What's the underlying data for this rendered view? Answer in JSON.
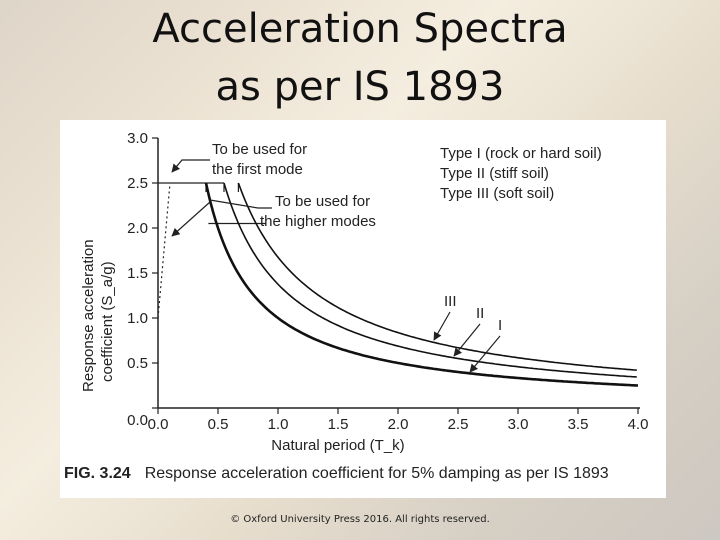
{
  "slide": {
    "title_line1": "Acceleration Spectra",
    "title_line2": "as per IS 1893",
    "copyright": "© Oxford University Press 2016. All rights reserved."
  },
  "figure": {
    "caption_number": "FIG. 3.24",
    "caption_text": "Response acceleration coefficient for 5% damping as per IS 1893"
  },
  "chart_data": {
    "type": "line",
    "xlabel": "Natural period (T_k)",
    "ylabel_line1": "Response acceleration",
    "ylabel_line2": "coefficient (S_a/g)",
    "xlim": [
      0,
      4.0
    ],
    "ylim": [
      0,
      3.0
    ],
    "x_ticks": [
      "0.0",
      "0.5",
      "1.0",
      "1.5",
      "2.0",
      "2.5",
      "3.0",
      "3.5",
      "4.0"
    ],
    "y_ticks": [
      "0.0",
      "0.5",
      "1.0",
      "1.5",
      "2.0",
      "2.5",
      "3.0"
    ],
    "grid": false,
    "legend_position": "top-right",
    "legend": [
      "Type I (rock or hard soil)",
      "Type II (stiff soil)",
      "Type III (soft soil)"
    ],
    "series": [
      {
        "name": "I",
        "plateau": 2.5,
        "x": [
          0.0,
          0.1,
          0.4,
          0.5,
          0.75,
          1.0,
          1.5,
          2.0,
          2.5,
          3.0,
          3.5,
          4.0
        ],
        "y": [
          1.0,
          2.5,
          2.5,
          2.0,
          1.33,
          1.0,
          0.67,
          0.5,
          0.4,
          0.33,
          0.29,
          0.25
        ]
      },
      {
        "name": "II",
        "plateau": 2.5,
        "x": [
          0.0,
          0.1,
          0.55,
          0.75,
          1.0,
          1.5,
          2.0,
          2.5,
          3.0,
          3.5,
          4.0
        ],
        "y": [
          1.0,
          2.5,
          2.5,
          1.81,
          1.36,
          0.91,
          0.68,
          0.54,
          0.45,
          0.39,
          0.34
        ]
      },
      {
        "name": "III",
        "plateau": 2.5,
        "x": [
          0.0,
          0.1,
          0.67,
          0.75,
          1.0,
          1.5,
          2.0,
          2.5,
          3.0,
          3.5,
          4.0
        ],
        "y": [
          1.0,
          2.5,
          2.5,
          2.23,
          1.67,
          1.11,
          0.84,
          0.67,
          0.56,
          0.48,
          0.42
        ]
      }
    ],
    "annotations": {
      "first_mode_line1": "To be used for",
      "first_mode_line2": "the first mode",
      "higher_modes_line1": "To be used for",
      "higher_modes_line2": "the higher modes"
    }
  }
}
